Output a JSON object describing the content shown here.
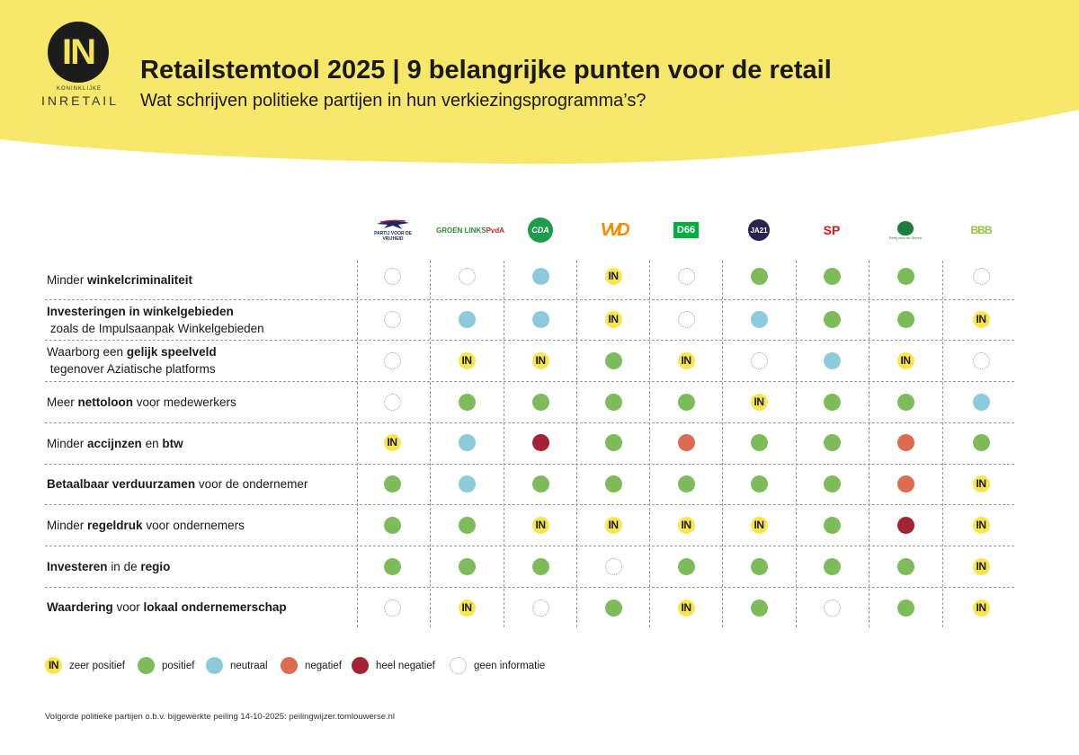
{
  "logo": {
    "mark": "IN",
    "small": "KONINKLIJKE",
    "name": "INRETAIL"
  },
  "title": "Retailstemtool 2025 | 9 belangrijke punten voor de retail",
  "subtitle": "Wat schrijven politieke partijen in hun verkiezingsprogramma’s?",
  "parties": [
    {
      "key": "pvv",
      "text1": "PARTIJ VOOR DE",
      "text2": "VRIJHEID"
    },
    {
      "key": "gl",
      "text1": "GROEN LINKS",
      "text2": "PvdA"
    },
    {
      "key": "cda",
      "text1": "CDA"
    },
    {
      "key": "vvd",
      "text1": "VVD"
    },
    {
      "key": "d66",
      "text1": "D66"
    },
    {
      "key": "ja21",
      "text1": "JA21"
    },
    {
      "key": "sp",
      "text1": "SP"
    },
    {
      "key": "pvdd",
      "text1": "Partij voor de Dieren"
    },
    {
      "key": "bbb",
      "text1": "BBB"
    }
  ],
  "rows": [
    {
      "parts": [
        [
          "Minder ",
          false
        ],
        [
          "winkelcriminaliteit",
          true
        ]
      ],
      "values": [
        "gi",
        "gi",
        "n",
        "zp",
        "gi",
        "p",
        "p",
        "p",
        "gi"
      ]
    },
    {
      "parts": [
        [
          "Investeringen in winkelgebieden",
          true
        ],
        [
          " zoals de Impulsaanpak Winkelgebieden",
          false
        ]
      ],
      "values": [
        "gi",
        "n",
        "n",
        "zp",
        "gi",
        "n",
        "p",
        "p",
        "zp"
      ]
    },
    {
      "parts": [
        [
          "Waarborg een ",
          false
        ],
        [
          "gelijk speelveld",
          true
        ],
        [
          " tegenover Aziatische platforms",
          false
        ]
      ],
      "values": [
        "gi",
        "zp",
        "zp",
        "p",
        "zp",
        "gi",
        "n",
        "zp",
        "gi"
      ]
    },
    {
      "parts": [
        [
          "Meer ",
          false
        ],
        [
          "nettoloon",
          true
        ],
        [
          " voor medewerkers",
          false
        ]
      ],
      "values": [
        "gi",
        "p",
        "p",
        "p",
        "p",
        "zp",
        "p",
        "p",
        "n"
      ]
    },
    {
      "parts": [
        [
          "Minder ",
          false
        ],
        [
          "accijnzen",
          true
        ],
        [
          " en ",
          false
        ],
        [
          "btw",
          true
        ]
      ],
      "values": [
        "zp",
        "n",
        "hn",
        "p",
        "ng",
        "p",
        "p",
        "ng",
        "p"
      ]
    },
    {
      "parts": [
        [
          "Betaalbaar verduurzamen",
          true
        ],
        [
          " voor de ondernemer",
          false
        ]
      ],
      "values": [
        "p",
        "n",
        "p",
        "p",
        "p",
        "p",
        "p",
        "ng",
        "zp"
      ]
    },
    {
      "parts": [
        [
          "Minder ",
          false
        ],
        [
          "regeldruk",
          true
        ],
        [
          " voor ondernemers",
          false
        ]
      ],
      "values": [
        "p",
        "p",
        "zp",
        "zp",
        "zp",
        "zp",
        "p",
        "hn",
        "zp"
      ]
    },
    {
      "parts": [
        [
          "Investeren",
          true
        ],
        [
          " in de ",
          false
        ],
        [
          "regio",
          true
        ]
      ],
      "values": [
        "p",
        "p",
        "p",
        "gi",
        "p",
        "p",
        "p",
        "p",
        "zp"
      ]
    },
    {
      "parts": [
        [
          "Waardering",
          true
        ],
        [
          " voor ",
          false
        ],
        [
          "lokaal ondernemerschap",
          true
        ]
      ],
      "values": [
        "gi",
        "zp",
        "gi",
        "p",
        "zp",
        "p",
        "gi",
        "p",
        "zp"
      ]
    }
  ],
  "in_mark": "IN",
  "legend": [
    {
      "type": "zp",
      "label": "zeer positief"
    },
    {
      "type": "p",
      "label": "positief"
    },
    {
      "type": "n",
      "label": "neutraal"
    },
    {
      "type": "ng",
      "label": "negatief"
    },
    {
      "type": "hn",
      "label": "heel negatief"
    },
    {
      "type": "gi",
      "label": "geen informatie"
    }
  ],
  "colors": {
    "banner": "#f7e76a",
    "zeer_positief": "#f9e64d",
    "positief": "#7dbb5b",
    "neutraal": "#8ccbdb",
    "negatief": "#dc6b50",
    "heel_negatief": "#a32233"
  },
  "footnote": "Volgorde politieke partijen o.b.v. bijgewerkte peiling 14-10-2025: peilingwijzer.tomlouwerse.nl"
}
